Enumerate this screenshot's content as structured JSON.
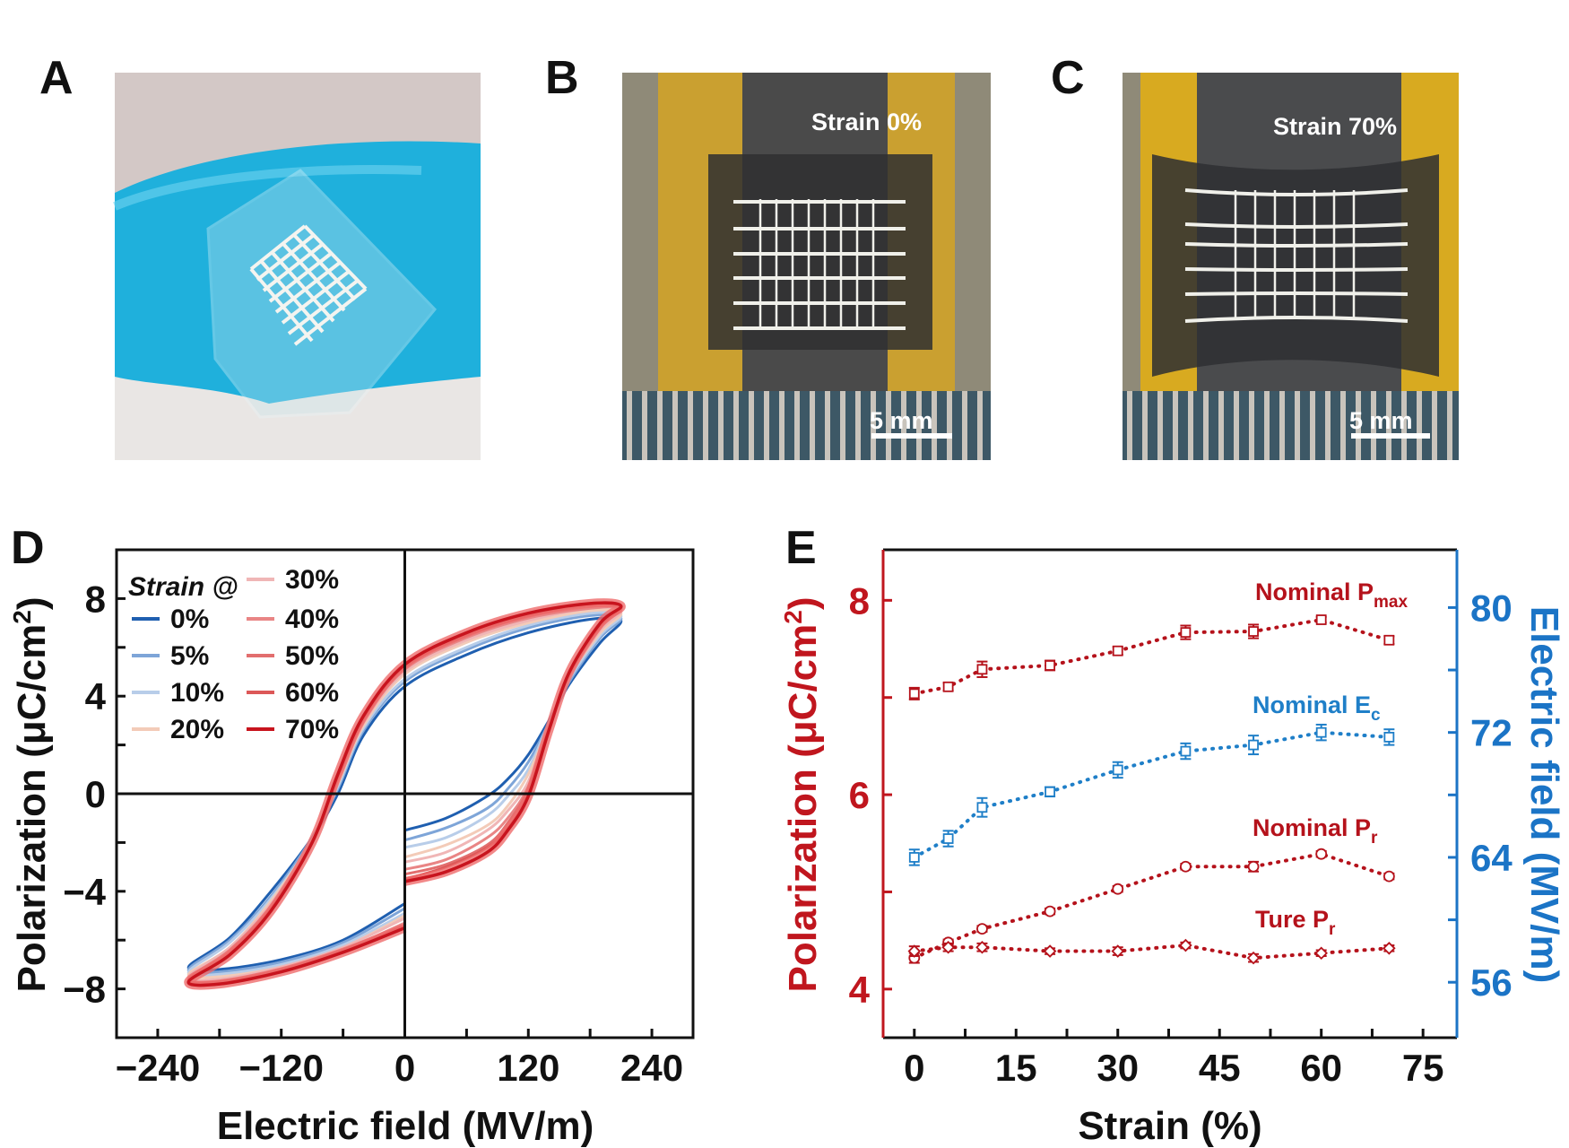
{
  "panels": {
    "A": {
      "label": "A"
    },
    "B": {
      "label": "B",
      "caption": "Strain 0%",
      "scale_bar": "5 mm"
    },
    "C": {
      "label": "C",
      "caption": "Strain 70%",
      "scale_bar": "5 mm"
    },
    "D": {
      "label": "D"
    },
    "E": {
      "label": "E"
    }
  },
  "chart_data": [
    {
      "panel": "D",
      "type": "line",
      "xlabel": "Electric field (MV/m)",
      "ylabel": "Polarization (μC/cm²)",
      "ylabel_main": "Polarization (μC/cm",
      "ylabel_sup": "2",
      "ylabel_end": ")",
      "xlim": [
        -280,
        280
      ],
      "ylim": [
        -10,
        10
      ],
      "xticks": [
        -240,
        -120,
        0,
        120,
        240
      ],
      "xtick_labels": [
        "−240",
        "−120",
        "0",
        "120",
        "240"
      ],
      "yticks": [
        -8,
        -4,
        0,
        4,
        8
      ],
      "ytick_labels": [
        "−8",
        "−4",
        "0",
        "4",
        "8"
      ],
      "grid": false,
      "legend_title": "Strain @",
      "legend_placement": "top-left",
      "x": [
        0,
        40,
        80,
        100,
        120,
        140,
        160,
        190,
        210,
        180,
        120,
        60,
        0,
        -40,
        -65,
        -90,
        -130,
        -170,
        -210,
        -180,
        -120,
        -60,
        0
      ],
      "series": [
        {
          "name": "0%",
          "color": "#1f5fb0",
          "values": [
            -1.5,
            -1.0,
            -0.1,
            0.6,
            1.6,
            3.0,
            4.5,
            6.2,
            7.1,
            7.15,
            6.6,
            5.7,
            4.4,
            2.4,
            0.0,
            -1.8,
            -4.0,
            -5.9,
            -7.1,
            -7.2,
            -6.8,
            -6.0,
            -4.5
          ]
        },
        {
          "name": "5%",
          "color": "#7ea5d8",
          "values": [
            -1.9,
            -1.4,
            -0.6,
            0.2,
            1.3,
            2.9,
            4.6,
            6.4,
            7.2,
            7.3,
            6.8,
            5.9,
            4.6,
            2.6,
            0.2,
            -1.8,
            -4.2,
            -6.0,
            -7.2,
            -7.3,
            -6.9,
            -6.1,
            -4.7
          ]
        },
        {
          "name": "10%",
          "color": "#b8cde9",
          "values": [
            -2.2,
            -1.8,
            -0.9,
            -0.1,
            1.0,
            2.9,
            4.7,
            6.5,
            7.3,
            7.4,
            6.9,
            6.0,
            4.7,
            2.7,
            0.3,
            -1.9,
            -4.3,
            -6.1,
            -7.3,
            -7.4,
            -7.0,
            -6.2,
            -4.9
          ]
        },
        {
          "name": "20%",
          "color": "#f3cbb8",
          "values": [
            -2.6,
            -2.1,
            -1.3,
            -0.5,
            0.8,
            2.8,
            4.8,
            6.6,
            7.4,
            7.5,
            7.0,
            6.2,
            4.9,
            2.8,
            0.4,
            -1.9,
            -4.4,
            -6.3,
            -7.4,
            -7.5,
            -7.1,
            -6.3,
            -5.0
          ]
        },
        {
          "name": "30%",
          "color": "#f0b6b6",
          "values": [
            -2.8,
            -2.4,
            -1.5,
            -0.7,
            0.5,
            2.8,
            4.8,
            6.7,
            7.5,
            7.6,
            7.1,
            6.3,
            5.0,
            2.9,
            0.5,
            -1.9,
            -4.5,
            -6.3,
            -7.5,
            -7.6,
            -7.1,
            -6.3,
            -5.1
          ]
        },
        {
          "name": "40%",
          "color": "#e98585",
          "values": [
            -3.1,
            -2.7,
            -1.8,
            -1.0,
            0.3,
            2.7,
            4.9,
            6.8,
            7.6,
            7.6,
            7.2,
            6.4,
            5.1,
            3.0,
            0.6,
            -2.0,
            -4.6,
            -6.4,
            -7.6,
            -7.7,
            -7.2,
            -6.4,
            -5.3
          ]
        },
        {
          "name": "50%",
          "color": "#e26e6e",
          "values": [
            -3.3,
            -2.9,
            -2.1,
            -1.2,
            0.2,
            2.7,
            4.9,
            6.9,
            7.6,
            7.7,
            7.3,
            6.5,
            5.2,
            3.1,
            0.7,
            -2.0,
            -4.7,
            -6.5,
            -7.6,
            -7.7,
            -7.2,
            -6.4,
            -5.4
          ]
        },
        {
          "name": "60%",
          "color": "#dc5858",
          "values": [
            -3.5,
            -3.0,
            -2.2,
            -1.4,
            0.0,
            2.6,
            5.0,
            6.9,
            7.7,
            7.8,
            7.3,
            6.5,
            5.2,
            3.1,
            0.7,
            -2.0,
            -4.7,
            -6.6,
            -7.7,
            -7.8,
            -7.3,
            -6.5,
            -5.4
          ]
        },
        {
          "name": "70%",
          "color": "#c8141e",
          "values": [
            -3.6,
            -3.2,
            -2.4,
            -1.5,
            -0.1,
            2.6,
            5.0,
            7.0,
            7.7,
            7.8,
            7.4,
            6.6,
            5.3,
            3.2,
            0.8,
            -2.0,
            -4.8,
            -6.6,
            -7.7,
            -7.8,
            -7.3,
            -6.5,
            -5.5
          ]
        }
      ]
    },
    {
      "panel": "E",
      "type": "scatter",
      "xlabel": "Strain (%)",
      "ylabel_left_main": "Polarization (μC/cm",
      "ylabel_left_sup": "2",
      "ylabel_left_end": ")",
      "ylabel_right": "Electric field (MV/m)",
      "xlim": [
        -4.6,
        80
      ],
      "ylim_left": [
        3.5,
        8.52
      ],
      "ylim_right": [
        52.45,
        83.7
      ],
      "xticks": [
        0,
        15,
        30,
        45,
        60,
        75
      ],
      "xtick_labels": [
        "0",
        "15",
        "30",
        "45",
        "60",
        "75"
      ],
      "yticks_left": [
        4,
        6,
        8
      ],
      "ytick_left_labels": [
        "4",
        "6",
        "8"
      ],
      "yticks_right": [
        56,
        64,
        72,
        80
      ],
      "ytick_right_labels": [
        "56",
        "64",
        "72",
        "80"
      ],
      "grid": false,
      "left_axis_color": "#c0161e",
      "right_axis_color": "#1b74c6",
      "x": [
        0,
        5,
        10,
        20,
        30,
        40,
        50,
        60,
        70
      ],
      "series": [
        {
          "name": "Nominal P",
          "sub": "max",
          "axis": "left",
          "marker": "square",
          "color": "#b5121b",
          "values": [
            7.04,
            7.11,
            7.29,
            7.33,
            7.48,
            7.67,
            7.68,
            7.8,
            7.59
          ],
          "errors": [
            0.06,
            0.04,
            0.08,
            0.05,
            0.04,
            0.07,
            0.07,
            0.03,
            0.04
          ]
        },
        {
          "name": "Nominal E",
          "sub": "c",
          "axis": "right",
          "marker": "square",
          "color": "#1f7fc8",
          "values": [
            64.0,
            65.2,
            67.2,
            68.2,
            69.6,
            70.8,
            71.2,
            72.0,
            71.7
          ],
          "errors": [
            0.5,
            0.5,
            0.6,
            0.3,
            0.5,
            0.5,
            0.6,
            0.5,
            0.5
          ]
        },
        {
          "name": "Nominal P",
          "sub": "r",
          "axis": "left",
          "marker": "circle",
          "color": "#b5121b",
          "values": [
            4.32,
            4.48,
            4.62,
            4.8,
            5.03,
            5.26,
            5.26,
            5.39,
            5.16
          ],
          "errors": [
            0.05,
            0.03,
            0.03,
            0.03,
            0.03,
            0.03,
            0.05,
            0.03,
            0.03
          ]
        },
        {
          "name": "Ture P",
          "sub": "r",
          "axis": "left",
          "marker": "diamond",
          "color": "#b5121b",
          "values": [
            4.39,
            4.43,
            4.43,
            4.39,
            4.39,
            4.45,
            4.32,
            4.37,
            4.42
          ],
          "errors": [
            0.05,
            0.04,
            0.04,
            0.03,
            0.04,
            0.03,
            0.04,
            0.03,
            0.03
          ]
        }
      ]
    }
  ]
}
